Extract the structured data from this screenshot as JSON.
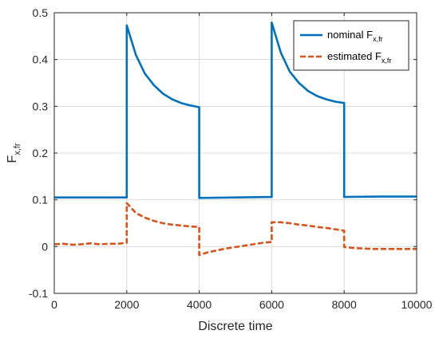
{
  "chart_data": {
    "type": "line",
    "xlabel": "Discrete time",
    "ylabel": {
      "main": "F",
      "sub": "x,fr"
    },
    "xlim": [
      0,
      10000
    ],
    "ylim": [
      -0.1,
      0.5
    ],
    "xticks": [
      0,
      2000,
      4000,
      6000,
      8000,
      10000
    ],
    "yticks": [
      -0.1,
      0,
      0.1,
      0.2,
      0.3,
      0.4,
      0.5
    ],
    "xtick_labels": [
      "0",
      "2000",
      "4000",
      "6000",
      "8000",
      "10000"
    ],
    "ytick_labels": [
      "-0.1",
      "0",
      "0.1",
      "0.2",
      "0.3",
      "0.4",
      "0.5"
    ],
    "grid": true,
    "legend_position": "top-right",
    "series": [
      {
        "name": "nominal F",
        "name_sub": "x,fr",
        "color": "#0072BD",
        "style": "solid",
        "x": [
          0,
          1999,
          2000,
          2250,
          2500,
          2750,
          3000,
          3250,
          3500,
          3750,
          3999,
          4000,
          5000,
          5999,
          6000,
          6250,
          6500,
          6750,
          7000,
          7250,
          7500,
          7750,
          7999,
          8000,
          9000,
          10000
        ],
        "y": [
          0.105,
          0.105,
          0.473,
          0.41,
          0.37,
          0.345,
          0.327,
          0.315,
          0.307,
          0.302,
          0.298,
          0.104,
          0.105,
          0.106,
          0.479,
          0.415,
          0.374,
          0.35,
          0.333,
          0.322,
          0.315,
          0.31,
          0.307,
          0.106,
          0.107,
          0.107
        ]
      },
      {
        "name": "estimated F",
        "name_sub": "x,fr",
        "color": "#D95319",
        "style": "dashed",
        "x": [
          0,
          250,
          500,
          750,
          1000,
          1250,
          1500,
          1750,
          1999,
          2000,
          2250,
          2500,
          2750,
          3000,
          3250,
          3500,
          3750,
          3999,
          4000,
          4250,
          4500,
          4750,
          5000,
          5250,
          5500,
          5750,
          5999,
          6000,
          6250,
          6500,
          6750,
          7000,
          7250,
          7500,
          7750,
          7999,
          8000,
          8250,
          8500,
          8750,
          9000,
          9250,
          9500,
          9750,
          10000
        ],
        "y": [
          0.005,
          0.006,
          0.004,
          0.005,
          0.007,
          0.005,
          0.006,
          0.006,
          0.008,
          0.093,
          0.072,
          0.062,
          0.055,
          0.05,
          0.047,
          0.045,
          0.043,
          0.042,
          -0.018,
          -0.012,
          -0.008,
          -0.004,
          -0.001,
          0.002,
          0.005,
          0.008,
          0.01,
          0.052,
          0.052,
          0.05,
          0.047,
          0.045,
          0.042,
          0.04,
          0.037,
          0.034,
          -0.001,
          -0.003,
          -0.004,
          -0.005,
          -0.005,
          -0.005,
          -0.005,
          -0.005,
          -0.005
        ]
      }
    ]
  }
}
